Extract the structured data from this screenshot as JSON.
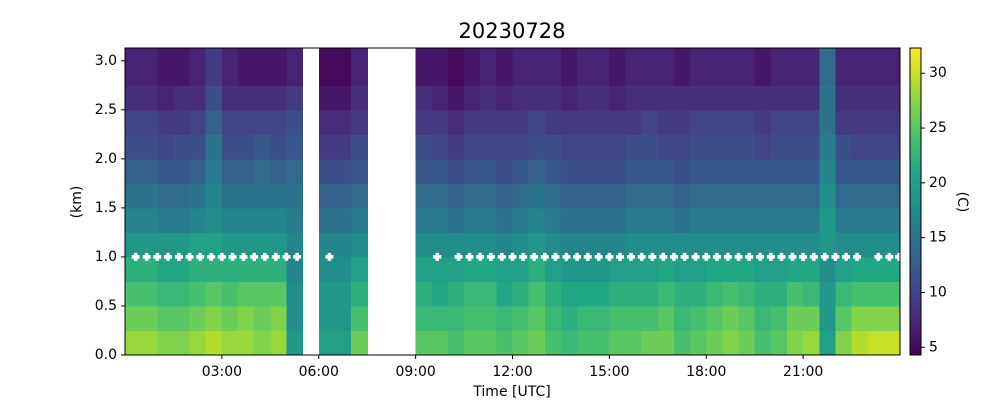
{
  "chart_data": {
    "type": "heatmap",
    "title": "20230728",
    "xlabel": "Time [UTC]",
    "ylabel": "(km)",
    "colorbar_label": "(C)",
    "colormap": "viridis",
    "xlim": [
      0,
      24
    ],
    "ylim": [
      0,
      3.13
    ],
    "clim": [
      4.3,
      32.3
    ],
    "xticks": [
      {
        "value": 3,
        "label": "03:00"
      },
      {
        "value": 6,
        "label": "06:00"
      },
      {
        "value": 9,
        "label": "09:00"
      },
      {
        "value": 12,
        "label": "12:00"
      },
      {
        "value": 15,
        "label": "15:00"
      },
      {
        "value": 18,
        "label": "18:00"
      },
      {
        "value": 21,
        "label": "21:00"
      }
    ],
    "yticks": [
      {
        "value": 0,
        "label": "0.0"
      },
      {
        "value": 0.5,
        "label": "0.5"
      },
      {
        "value": 1,
        "label": "1.0"
      },
      {
        "value": 1.5,
        "label": "1.5"
      },
      {
        "value": 2,
        "label": "2.0"
      },
      {
        "value": 2.5,
        "label": "2.5"
      },
      {
        "value": 3,
        "label": "3.0"
      }
    ],
    "cticks": [
      5,
      10,
      15,
      20,
      25,
      30
    ],
    "x_edges": [
      0,
      0.5,
      1,
      1.5,
      2,
      2.5,
      3,
      3.5,
      4,
      4.5,
      5,
      5.5,
      6,
      6.5,
      7,
      7.5,
      8,
      8.5,
      9,
      9.5,
      10,
      10.5,
      11,
      11.5,
      12,
      12.5,
      13,
      13.5,
      14,
      14.5,
      15,
      15.5,
      16,
      16.5,
      17,
      17.5,
      18,
      18.5,
      19,
      19.5,
      20,
      20.5,
      21,
      21.5,
      22,
      22.5,
      23,
      23.5,
      24
    ],
    "y_edges": [
      0,
      0.25,
      0.5,
      0.75,
      1,
      1.25,
      1.5,
      1.75,
      2,
      2.25,
      2.5,
      2.75,
      3.13
    ],
    "values": [
      [
        28,
        28,
        27,
        27,
        28,
        29,
        28,
        28,
        27,
        28,
        19,
        null,
        20,
        20,
        26,
        null,
        null,
        null,
        25,
        25,
        24,
        25,
        25,
        24,
        25,
        26,
        24,
        23,
        24,
        24,
        25,
        25,
        26,
        26,
        24,
        25,
        26,
        27,
        26,
        24,
        25,
        27,
        28,
        20,
        27,
        29,
        30,
        30
      ],
      [
        26,
        26,
        25,
        25,
        26,
        27,
        26,
        27,
        26,
        27,
        18,
        null,
        19,
        19,
        24,
        null,
        null,
        null,
        23,
        23,
        23,
        24,
        24,
        23,
        24,
        25,
        23,
        22,
        23,
        23,
        24,
        24,
        24,
        25,
        23,
        24,
        25,
        26,
        25,
        23,
        24,
        26,
        26,
        19,
        25,
        27,
        27,
        27
      ],
      [
        24,
        24,
        23,
        23,
        24,
        25,
        24,
        25,
        25,
        25,
        18,
        null,
        19,
        19,
        22,
        null,
        null,
        null,
        22,
        21,
        22,
        23,
        23,
        21,
        22,
        24,
        22,
        21,
        21,
        21,
        22,
        22,
        22,
        23,
        22,
        22,
        23,
        24,
        23,
        22,
        22,
        24,
        23,
        19,
        23,
        24,
        24,
        24
      ],
      [
        22,
        22,
        21,
        21,
        22,
        22,
        22,
        22,
        22,
        22,
        17,
        null,
        18,
        18,
        20,
        null,
        null,
        null,
        20,
        20,
        20,
        21,
        21,
        20,
        20,
        22,
        20,
        19,
        19,
        19,
        20,
        20,
        20,
        21,
        20,
        20,
        21,
        21,
        21,
        20,
        20,
        21,
        21,
        18,
        20,
        21,
        21,
        21
      ],
      [
        19,
        19,
        19,
        19,
        20,
        20,
        19,
        19,
        19,
        19,
        17,
        null,
        17,
        17,
        18,
        null,
        null,
        null,
        18,
        18,
        18,
        18,
        18,
        17,
        18,
        19,
        18,
        17,
        17,
        17,
        17,
        18,
        18,
        18,
        18,
        18,
        18,
        18,
        18,
        18,
        18,
        18,
        18,
        19,
        18,
        18,
        18,
        18
      ],
      [
        17,
        17,
        16,
        16,
        17,
        18,
        17,
        17,
        17,
        17,
        16,
        null,
        15,
        15,
        16,
        null,
        null,
        null,
        16,
        16,
        15,
        16,
        16,
        15,
        16,
        17,
        16,
        15,
        15,
        15,
        15,
        16,
        16,
        16,
        15,
        16,
        16,
        16,
        16,
        16,
        16,
        16,
        16,
        19,
        16,
        16,
        16,
        16
      ],
      [
        15,
        15,
        14,
        14,
        15,
        17,
        15,
        15,
        15,
        15,
        15,
        null,
        13,
        13,
        14,
        null,
        null,
        null,
        14,
        14,
        13,
        14,
        14,
        13,
        14,
        15,
        14,
        13,
        13,
        13,
        13,
        14,
        14,
        14,
        13,
        14,
        14,
        14,
        14,
        14,
        14,
        14,
        14,
        18,
        14,
        14,
        14,
        14
      ],
      [
        13,
        13,
        12,
        12,
        13,
        16,
        13,
        13,
        14,
        13,
        14,
        null,
        11,
        11,
        12,
        null,
        null,
        null,
        12,
        12,
        11,
        12,
        12,
        11,
        12,
        13,
        12,
        11,
        11,
        11,
        11,
        12,
        12,
        12,
        11,
        12,
        12,
        12,
        12,
        12,
        12,
        12,
        12,
        17,
        12,
        12,
        12,
        12
      ],
      [
        11,
        11,
        10,
        11,
        11,
        15,
        11,
        11,
        12,
        11,
        12,
        null,
        9,
        9,
        11,
        null,
        null,
        null,
        11,
        10,
        9,
        10,
        10,
        10,
        10,
        11,
        11,
        10,
        10,
        10,
        10,
        11,
        11,
        10,
        10,
        11,
        11,
        11,
        11,
        10,
        11,
        11,
        11,
        16,
        11,
        10,
        10,
        10
      ],
      [
        10,
        10,
        9,
        9,
        10,
        13,
        10,
        10,
        10,
        10,
        11,
        null,
        8,
        8,
        9,
        null,
        null,
        null,
        9,
        9,
        8,
        9,
        9,
        9,
        9,
        10,
        9,
        9,
        9,
        9,
        9,
        9,
        10,
        9,
        9,
        10,
        10,
        10,
        10,
        9,
        10,
        10,
        10,
        15,
        9,
        9,
        9,
        9
      ],
      [
        8,
        8,
        7,
        8,
        8,
        11,
        8,
        8,
        8,
        8,
        9,
        null,
        6,
        6,
        8,
        null,
        null,
        null,
        8,
        7,
        6,
        7,
        8,
        7,
        8,
        8,
        8,
        7,
        8,
        8,
        7,
        8,
        8,
        8,
        8,
        8,
        8,
        8,
        8,
        8,
        8,
        8,
        8,
        15,
        8,
        8,
        8,
        8
      ],
      [
        7,
        7,
        6,
        6,
        7,
        9,
        7,
        6,
        6,
        6,
        7,
        null,
        5,
        5,
        7,
        null,
        null,
        null,
        6,
        6,
        5,
        6,
        7,
        6,
        7,
        7,
        7,
        6,
        7,
        7,
        6,
        7,
        7,
        7,
        6,
        7,
        7,
        7,
        7,
        6,
        7,
        7,
        7,
        14,
        7,
        7,
        7,
        7
      ]
    ],
    "markers": {
      "color": "#ffffff",
      "y": 1.0,
      "x": [
        0.33,
        0.67,
        1,
        1.33,
        1.67,
        2,
        2.33,
        2.67,
        3,
        3.33,
        3.67,
        4,
        4.33,
        4.67,
        5,
        5.33,
        6.33,
        9.67,
        10.33,
        10.67,
        11,
        11.33,
        11.67,
        12,
        12.33,
        12.67,
        13,
        13.33,
        13.67,
        14,
        14.33,
        14.67,
        15,
        15.33,
        15.67,
        16,
        16.33,
        16.67,
        17,
        17.33,
        17.67,
        18,
        18.33,
        18.67,
        19,
        19.33,
        19.67,
        20,
        20.33,
        20.67,
        21,
        21.33,
        21.67,
        22,
        22.33,
        22.67,
        23.33,
        23.67,
        23.97
      ]
    }
  }
}
